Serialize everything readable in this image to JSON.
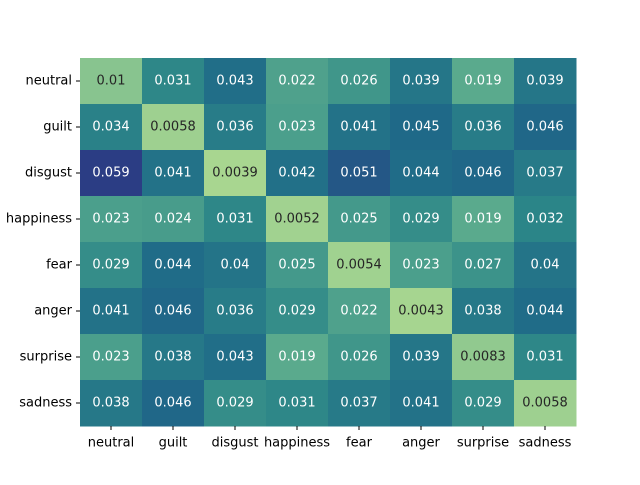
{
  "chart_data": {
    "type": "heatmap",
    "title": "",
    "xlabel": "",
    "ylabel": "",
    "x_categories": [
      "neutral",
      "guilt",
      "disgust",
      "happiness",
      "fear",
      "anger",
      "surprise",
      "sadness"
    ],
    "y_categories": [
      "neutral",
      "guilt",
      "disgust",
      "happiness",
      "fear",
      "anger",
      "surprise",
      "sadness"
    ],
    "values": [
      [
        0.01,
        0.031,
        0.043,
        0.022,
        0.026,
        0.039,
        0.019,
        0.039
      ],
      [
        0.034,
        0.0058,
        0.036,
        0.023,
        0.041,
        0.045,
        0.036,
        0.046
      ],
      [
        0.059,
        0.041,
        0.0039,
        0.042,
        0.051,
        0.044,
        0.046,
        0.037
      ],
      [
        0.023,
        0.024,
        0.031,
        0.0052,
        0.025,
        0.029,
        0.019,
        0.032
      ],
      [
        0.029,
        0.044,
        0.04,
        0.025,
        0.0054,
        0.023,
        0.027,
        0.04
      ],
      [
        0.041,
        0.046,
        0.036,
        0.029,
        0.022,
        0.0043,
        0.038,
        0.044
      ],
      [
        0.023,
        0.038,
        0.043,
        0.019,
        0.026,
        0.039,
        0.0083,
        0.031
      ],
      [
        0.038,
        0.046,
        0.029,
        0.031,
        0.037,
        0.041,
        0.029,
        0.0058
      ]
    ],
    "value_range": [
      0.0039,
      0.059
    ],
    "colormap": [
      "#a8d690",
      "#5fae8e",
      "#2c8688",
      "#1f6988",
      "#2b3d84"
    ],
    "colorbar": false,
    "grid": false
  }
}
